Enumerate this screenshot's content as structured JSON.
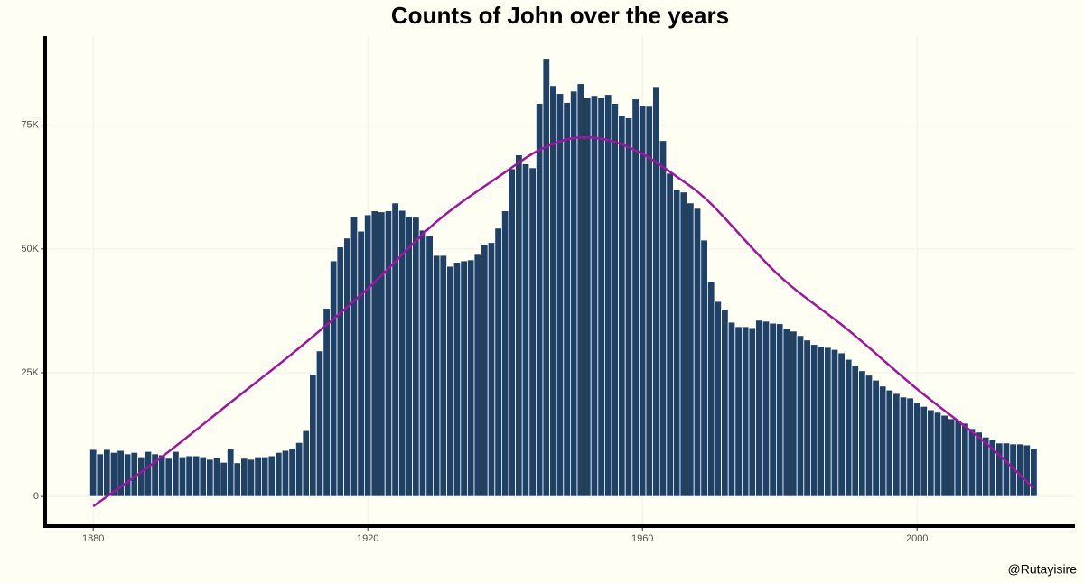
{
  "chart_data": [
    {
      "type": "bar",
      "title": "Counts of John over the years",
      "caption": "@Rutayisire",
      "color": "#1f4166",
      "x": [
        1880,
        1881,
        1882,
        1883,
        1884,
        1885,
        1886,
        1887,
        1888,
        1889,
        1890,
        1891,
        1892,
        1893,
        1894,
        1895,
        1896,
        1897,
        1898,
        1899,
        1900,
        1901,
        1902,
        1903,
        1904,
        1905,
        1906,
        1907,
        1908,
        1909,
        1910,
        1911,
        1912,
        1913,
        1914,
        1915,
        1916,
        1917,
        1918,
        1919,
        1920,
        1921,
        1922,
        1923,
        1924,
        1925,
        1926,
        1927,
        1928,
        1929,
        1930,
        1931,
        1932,
        1933,
        1934,
        1935,
        1936,
        1937,
        1938,
        1939,
        1940,
        1941,
        1942,
        1943,
        1944,
        1945,
        1946,
        1947,
        1948,
        1949,
        1950,
        1951,
        1952,
        1953,
        1954,
        1955,
        1956,
        1957,
        1958,
        1959,
        1960,
        1961,
        1962,
        1963,
        1964,
        1965,
        1966,
        1967,
        1968,
        1969,
        1970,
        1971,
        1972,
        1973,
        1974,
        1975,
        1976,
        1977,
        1978,
        1979,
        1980,
        1981,
        1982,
        1983,
        1984,
        1985,
        1986,
        1987,
        1988,
        1989,
        1990,
        1991,
        1992,
        1993,
        1994,
        1995,
        1996,
        1997,
        1998,
        1999,
        2000,
        2001,
        2002,
        2003,
        2004,
        2005,
        2006,
        2007,
        2008,
        2009,
        2010,
        2011,
        2012,
        2013,
        2014,
        2015,
        2016,
        2017
      ],
      "values": [
        9500,
        8600,
        9500,
        8900,
        9300,
        8600,
        8900,
        8000,
        9100,
        8600,
        8400,
        7700,
        9100,
        8000,
        8200,
        8200,
        8000,
        7500,
        7800,
        6900,
        9700,
        6800,
        7700,
        7500,
        8000,
        8000,
        8200,
        8900,
        9300,
        9700,
        10900,
        13300,
        24600,
        29400,
        38000,
        47600,
        50400,
        52200,
        56600,
        53600,
        56900,
        57700,
        57500,
        57700,
        59300,
        57800,
        56600,
        56400,
        53800,
        52700,
        48700,
        48700,
        46500,
        47300,
        47600,
        47800,
        48900,
        50900,
        51300,
        54200,
        57700,
        66200,
        69000,
        67200,
        66400,
        79400,
        88500,
        83000,
        81400,
        79600,
        81900,
        83400,
        80500,
        81000,
        80500,
        81200,
        79400,
        77000,
        76500,
        80300,
        79000,
        78800,
        82800,
        71900,
        65300,
        62000,
        61500,
        59300,
        58200,
        51800,
        43400,
        39400,
        37800,
        35200,
        34300,
        34300,
        34100,
        35600,
        35400,
        35000,
        34900,
        33900,
        33400,
        32500,
        31600,
        30700,
        30300,
        30100,
        29700,
        29000,
        27700,
        26500,
        25400,
        24500,
        23500,
        22300,
        21500,
        20800,
        20100,
        19900,
        19000,
        18200,
        17500,
        17000,
        16400,
        15700,
        15300,
        14800,
        13700,
        13000,
        12000,
        11500,
        10800,
        10800,
        10600,
        10600,
        10400,
        9700
      ],
      "xlim": [
        1873,
        2023
      ],
      "ylim": [
        -6000,
        93000
      ],
      "xticks": [
        1880,
        1920,
        1960,
        2000
      ],
      "yticks": [
        0,
        {
          "value": 25000,
          "label": "25K"
        },
        {
          "value": 50000,
          "label": "50K"
        },
        {
          "value": 75000,
          "label": "75K"
        }
      ],
      "grid": true
    },
    {
      "type": "line",
      "color": "#a2139f",
      "x": [
        1880,
        1890,
        1900,
        1910,
        1920,
        1930,
        1940,
        1945,
        1950,
        1955,
        1960,
        1965,
        1970,
        1980,
        1990,
        2000,
        2010,
        2017
      ],
      "values": [
        -2000,
        8000,
        19000,
        30000,
        42000,
        55500,
        65500,
        70000,
        72400,
        72000,
        69200,
        64600,
        59100,
        44500,
        33600,
        21700,
        10800,
        1600
      ]
    }
  ]
}
